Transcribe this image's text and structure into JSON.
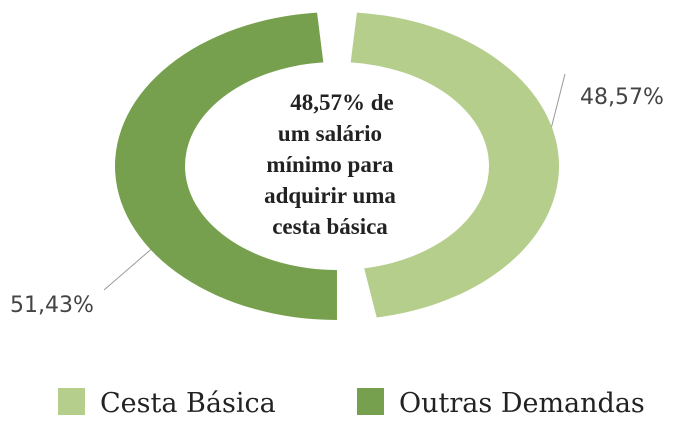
{
  "chart_data": {
    "type": "donut",
    "categories": [
      "Cesta Básica",
      "Outras Demandas"
    ],
    "values": [
      48.57,
      51.43
    ],
    "value_labels": [
      "48,57%",
      "51,43%"
    ],
    "colors": [
      "#b5ce8b",
      "#77a04e"
    ],
    "center_text": [
      "48,57% de",
      "um salário",
      "mínimo para",
      "adquirir uma",
      "cesta básica"
    ],
    "legend": "bottom"
  }
}
